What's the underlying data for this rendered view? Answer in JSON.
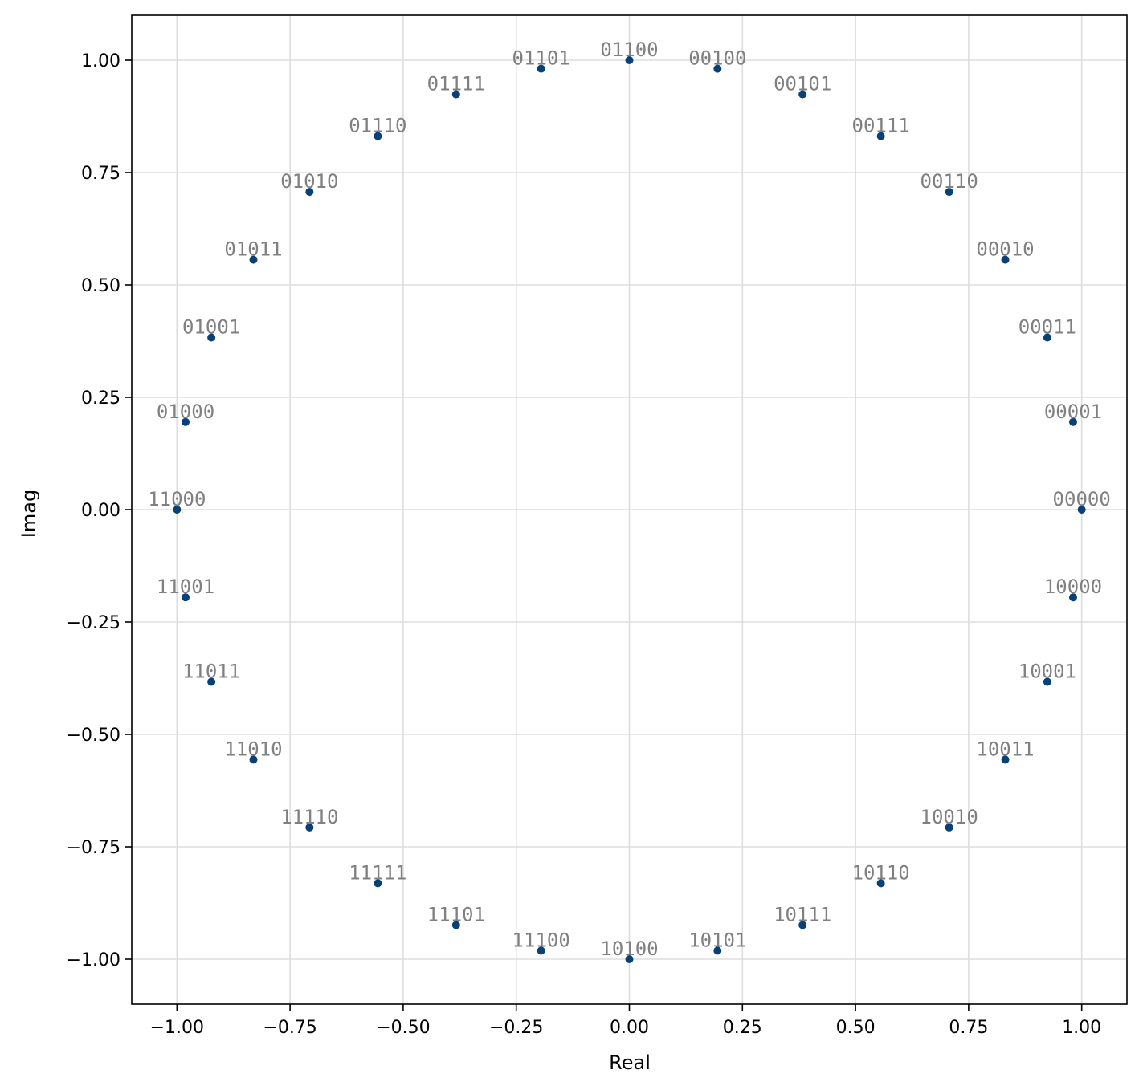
{
  "chart_data": {
    "type": "scatter",
    "title": "",
    "xlabel": "Real",
    "ylabel": "Imag",
    "xlim": [
      -1.1,
      1.1
    ],
    "ylim": [
      -1.1,
      1.1
    ],
    "grid": true,
    "xticks": [
      -1.0,
      -0.75,
      -0.5,
      -0.25,
      0.0,
      0.25,
      0.5,
      0.75,
      1.0
    ],
    "yticks": [
      -1.0,
      -0.75,
      -0.5,
      -0.25,
      0.0,
      0.25,
      0.5,
      0.75,
      1.0
    ],
    "xtick_labels": [
      "−1.00",
      "−0.75",
      "−0.50",
      "−0.25",
      "0.00",
      "0.25",
      "0.50",
      "0.75",
      "1.00"
    ],
    "ytick_labels": [
      "−1.00",
      "−0.75",
      "−0.50",
      "−0.25",
      "0.00",
      "0.25",
      "0.50",
      "0.75",
      "1.00"
    ],
    "marker_color": "#08407a",
    "label_color": "#808080",
    "grid_color": "#dddddd",
    "points": [
      {
        "label": "00000",
        "x": 1.0,
        "y": 0.0
      },
      {
        "label": "00001",
        "x": 0.981,
        "y": 0.195
      },
      {
        "label": "00011",
        "x": 0.924,
        "y": 0.383
      },
      {
        "label": "00010",
        "x": 0.831,
        "y": 0.556
      },
      {
        "label": "00110",
        "x": 0.707,
        "y": 0.707
      },
      {
        "label": "00111",
        "x": 0.556,
        "y": 0.831
      },
      {
        "label": "00101",
        "x": 0.383,
        "y": 0.924
      },
      {
        "label": "00100",
        "x": 0.195,
        "y": 0.981
      },
      {
        "label": "01100",
        "x": 0.0,
        "y": 1.0
      },
      {
        "label": "01101",
        "x": -0.195,
        "y": 0.981
      },
      {
        "label": "01111",
        "x": -0.383,
        "y": 0.924
      },
      {
        "label": "01110",
        "x": -0.556,
        "y": 0.831
      },
      {
        "label": "01010",
        "x": -0.707,
        "y": 0.707
      },
      {
        "label": "01011",
        "x": -0.831,
        "y": 0.556
      },
      {
        "label": "01001",
        "x": -0.924,
        "y": 0.383
      },
      {
        "label": "01000",
        "x": -0.981,
        "y": 0.195
      },
      {
        "label": "11000",
        "x": -1.0,
        "y": 0.0
      },
      {
        "label": "11001",
        "x": -0.981,
        "y": -0.195
      },
      {
        "label": "11011",
        "x": -0.924,
        "y": -0.383
      },
      {
        "label": "11010",
        "x": -0.831,
        "y": -0.556
      },
      {
        "label": "11110",
        "x": -0.707,
        "y": -0.707
      },
      {
        "label": "11111",
        "x": -0.556,
        "y": -0.831
      },
      {
        "label": "11101",
        "x": -0.383,
        "y": -0.924
      },
      {
        "label": "11100",
        "x": -0.195,
        "y": -0.981
      },
      {
        "label": "10100",
        "x": 0.0,
        "y": -1.0
      },
      {
        "label": "10101",
        "x": 0.195,
        "y": -0.981
      },
      {
        "label": "10111",
        "x": 0.383,
        "y": -0.924
      },
      {
        "label": "10110",
        "x": 0.556,
        "y": -0.831
      },
      {
        "label": "10010",
        "x": 0.707,
        "y": -0.707
      },
      {
        "label": "10011",
        "x": 0.831,
        "y": -0.556
      },
      {
        "label": "10001",
        "x": 0.924,
        "y": -0.383
      },
      {
        "label": "10000",
        "x": 0.981,
        "y": -0.195
      }
    ]
  }
}
